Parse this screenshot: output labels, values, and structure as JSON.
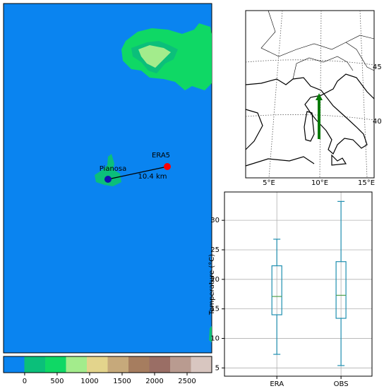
{
  "map": {
    "station": "Pianosa",
    "reanalysis": "ERA5",
    "distance": "10.4 km",
    "colorbar": {
      "lim": [
        -325,
        2880
      ],
      "ticks": [
        0,
        500,
        1000,
        1500,
        2000,
        2500
      ],
      "colors": [
        "#0a84f0",
        "#0bbf7a",
        "#0fd865",
        "#a3ec8c",
        "#e3d48c",
        "#c6a97b",
        "#a67d5f",
        "#9a6e65",
        "#b99b90",
        "#d8c6c0"
      ]
    }
  },
  "inset": {
    "lon_labels": [
      "5°E",
      "10°E",
      "15°E"
    ],
    "lat_labels": [
      "45",
      "40"
    ]
  },
  "chart_data": {
    "type": "box",
    "y_label": "Temperature (°C)",
    "categories": [
      "ERA",
      "OBS"
    ],
    "boxes": [
      {
        "whislo": 7.3,
        "q1": 14.0,
        "med": 17.1,
        "q3": 22.3,
        "whishi": 26.8
      },
      {
        "whislo": 5.4,
        "q1": 13.4,
        "med": 17.3,
        "q3": 23.0,
        "whishi": 33.2
      }
    ],
    "color": "#1f8fb0",
    "median_color": "#4fa04f",
    "ylim": [
      3.6,
      34.8
    ],
    "yticks": [
      5,
      10,
      15,
      20,
      25,
      30
    ],
    "grid": true
  }
}
